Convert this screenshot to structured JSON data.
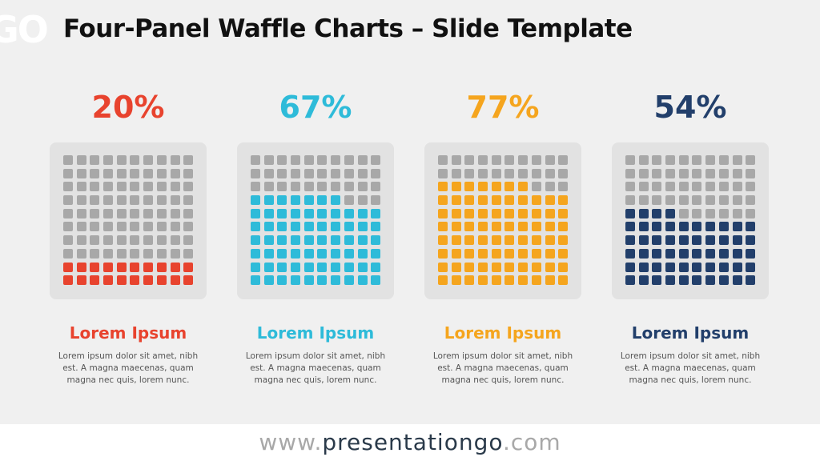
{
  "logo_mark": "GO",
  "title": "Four-Panel Waffle Charts – Slide Template",
  "panels": [
    {
      "percent": "20%",
      "heading": "Lorem Ipsum",
      "body": "Lorem ipsum dolor sit amet, nibh est. A magna maecenas, quam magna nec quis, lorem nunc.",
      "color": "#e8432e"
    },
    {
      "percent": "67%",
      "heading": "Lorem Ipsum",
      "body": "Lorem ipsum dolor sit amet, nibh est. A magna maecenas, quam magna nec quis, lorem nunc.",
      "color": "#2ebbd9"
    },
    {
      "percent": "77%",
      "heading": "Lorem Ipsum",
      "body": "Lorem ipsum dolor sit amet, nibh est. A magna maecenas, quam magna nec quis, lorem nunc.",
      "color": "#f5a51e"
    },
    {
      "percent": "54%",
      "heading": "Lorem Ipsum",
      "body": "Lorem ipsum dolor sit amet, nibh est. A magna maecenas, quam magna nec quis, lorem nunc.",
      "color": "#223f6b"
    }
  ],
  "footer": {
    "prefix": "www.",
    "brand": "presentationgo",
    "suffix": ".com"
  },
  "chart_data": [
    {
      "type": "waffle",
      "grid": [
        10,
        10
      ],
      "value": 20,
      "fill_color": "#e8432e",
      "empty_color": "#a8a8a8"
    },
    {
      "type": "waffle",
      "grid": [
        10,
        10
      ],
      "value": 67,
      "fill_color": "#2ebbd9",
      "empty_color": "#a8a8a8"
    },
    {
      "type": "waffle",
      "grid": [
        10,
        10
      ],
      "value": 77,
      "fill_color": "#f5a51e",
      "empty_color": "#a8a8a8"
    },
    {
      "type": "waffle",
      "grid": [
        10,
        10
      ],
      "value": 54,
      "fill_color": "#223f6b",
      "empty_color": "#a8a8a8"
    }
  ]
}
